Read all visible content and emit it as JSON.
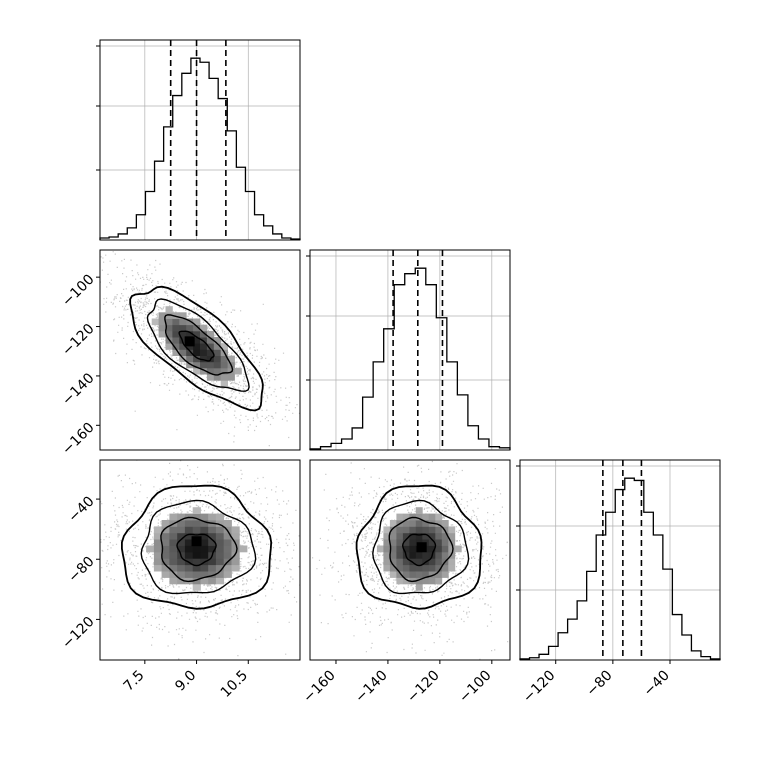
{
  "chart_data": {
    "type": "corner",
    "params": [
      {
        "xlim": [
          6.2,
          12.0
        ],
        "ticks": [
          7.5,
          9.0,
          10.5
        ],
        "tick_labels": [
          "7.5",
          "9.0",
          "10.5"
        ],
        "quantiles": [
          8.25,
          9.0,
          9.85
        ]
      },
      {
        "xlim": [
          -170,
          -93
        ],
        "ticks": [
          -160,
          -140,
          -120,
          -100
        ],
        "tick_labels": [
          "−160",
          "−140",
          "−120",
          "−100"
        ],
        "quantiles": [
          -138,
          -128.5,
          -119
        ]
      },
      {
        "xlim": [
          -145,
          -5
        ],
        "ticks": [
          -120,
          -80,
          -40
        ],
        "tick_labels": [
          "−120",
          "−80",
          "−40"
        ],
        "quantiles": [
          -87,
          -73,
          -60
        ]
      }
    ],
    "y_axes": [
      {
        "row": 1,
        "ylim": [
          -170,
          -89
        ],
        "ticks": [
          -160,
          -140,
          -120,
          -100
        ],
        "tick_labels": [
          "−160",
          "−140",
          "−120",
          "−100"
        ]
      },
      {
        "row": 2,
        "ylim": [
          -147,
          -14
        ],
        "ticks": [
          -120,
          -80,
          -40
        ],
        "tick_labels": [
          "−120",
          "−80",
          "−40"
        ]
      }
    ],
    "histograms": [
      {
        "param": 0,
        "counts": [
          2,
          3,
          6,
          12,
          25,
          48,
          78,
          112,
          143,
          165,
          180,
          176,
          160,
          140,
          108,
          72,
          48,
          25,
          14,
          6,
          2,
          1
        ]
      },
      {
        "param": 1,
        "counts": [
          1,
          3,
          6,
          10,
          20,
          48,
          80,
          110,
          150,
          160,
          165,
          150,
          120,
          80,
          50,
          22,
          10,
          3,
          2
        ]
      },
      {
        "param": 2,
        "counts": [
          1,
          2,
          5,
          12,
          24,
          36,
          52,
          78,
          110,
          130,
          150,
          160,
          158,
          130,
          110,
          80,
          40,
          22,
          8,
          3,
          1
        ]
      }
    ],
    "correlation_panels": [
      {
        "x_param": 0,
        "y_param": 1,
        "mean": [
          9.0,
          -128
        ],
        "std": [
          0.8,
          10
        ],
        "corr": -0.72,
        "peak": [
          8.8,
          -126
        ]
      },
      {
        "x_param": 0,
        "y_param": 2,
        "mean": [
          9.0,
          -73
        ],
        "std": [
          0.9,
          17
        ],
        "corr": 0.0,
        "peak": [
          9.0,
          -68
        ]
      },
      {
        "x_param": 1,
        "y_param": 2,
        "mean": [
          -128,
          -73
        ],
        "std": [
          10,
          17
        ],
        "corr": 0.0,
        "peak": [
          -127,
          -72
        ]
      }
    ],
    "contour_levels_sigma": [
      0.5,
      1.0,
      1.5,
      2.0
    ],
    "grid": true,
    "colors": {
      "line": "#000000",
      "grid": "#b0b0b0",
      "scatter": "#888888"
    }
  }
}
